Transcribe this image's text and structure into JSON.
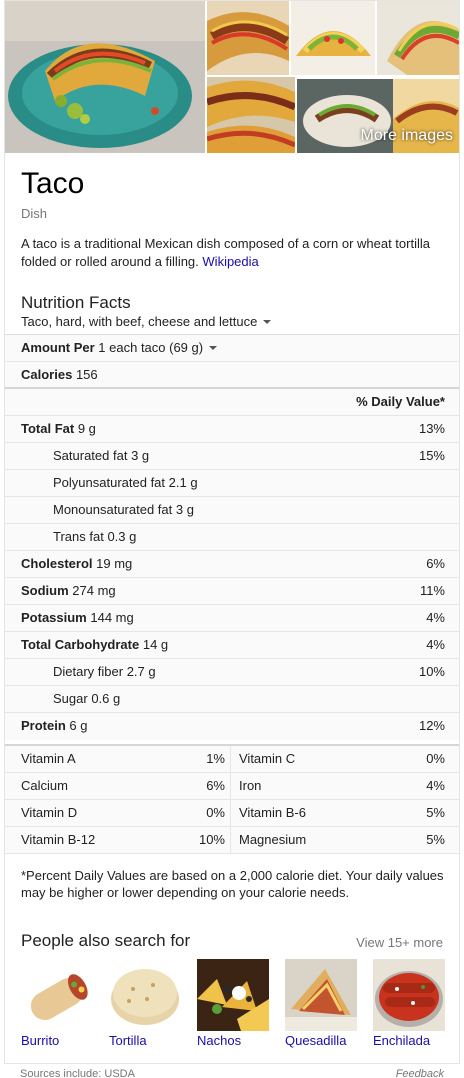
{
  "images": {
    "more_label": "More images"
  },
  "entity": {
    "title": "Taco",
    "subtitle": "Dish",
    "description": "A taco is a traditional Mexican dish composed of a corn or wheat tortilla folded or rolled around a filling.",
    "source_link": "Wikipedia"
  },
  "nutrition": {
    "title": "Nutrition Facts",
    "food_selector": "Taco, hard, with beef, cheese and lettuce",
    "amount_per_label": "Amount Per",
    "serving_selector": "1 each taco (69 g)",
    "calories_label": "Calories",
    "calories_value": "156",
    "daily_value_header": "% Daily Value*",
    "rows": [
      {
        "label": "Total Fat",
        "amount": "9 g",
        "pct": "13%"
      },
      {
        "label": "Saturated fat",
        "amount": "3 g",
        "pct": "15%"
      },
      {
        "label": "Polyunsaturated fat",
        "amount": "2.1 g",
        "pct": ""
      },
      {
        "label": "Monounsaturated fat",
        "amount": "3 g",
        "pct": ""
      },
      {
        "label": "Trans fat",
        "amount": "0.3 g",
        "pct": ""
      },
      {
        "label": "Cholesterol",
        "amount": "19 mg",
        "pct": "6%"
      },
      {
        "label": "Sodium",
        "amount": "274 mg",
        "pct": "11%"
      },
      {
        "label": "Potassium",
        "amount": "144 mg",
        "pct": "4%"
      },
      {
        "label": "Total Carbohydrate",
        "amount": "14 g",
        "pct": "4%"
      },
      {
        "label": "Dietary fiber",
        "amount": "2.7 g",
        "pct": "10%"
      },
      {
        "label": "Sugar",
        "amount": "0.6 g",
        "pct": ""
      },
      {
        "label": "Protein",
        "amount": "6 g",
        "pct": "12%"
      }
    ],
    "vitamins": [
      {
        "l1": "Vitamin A",
        "p1": "1%",
        "l2": "Vitamin C",
        "p2": "0%"
      },
      {
        "l1": "Calcium",
        "p1": "6%",
        "l2": "Iron",
        "p2": "4%"
      },
      {
        "l1": "Vitamin D",
        "p1": "0%",
        "l2": "Vitamin B-6",
        "p2": "5%"
      },
      {
        "l1": "Vitamin B-12",
        "p1": "10%",
        "l2": "Magnesium",
        "p2": "5%"
      }
    ],
    "footnote": "*Percent Daily Values are based on a 2,000 calorie diet. Your daily values may be higher or lower depending on your calorie needs."
  },
  "people_also_search": {
    "title": "People also search for",
    "more_link": "View 15+ more",
    "items": [
      {
        "label": "Burrito"
      },
      {
        "label": "Tortilla"
      },
      {
        "label": "Nachos"
      },
      {
        "label": "Quesadilla"
      },
      {
        "label": "Enchilada"
      }
    ]
  },
  "footer": {
    "sources": "Sources include: USDA",
    "feedback": "Feedback"
  }
}
